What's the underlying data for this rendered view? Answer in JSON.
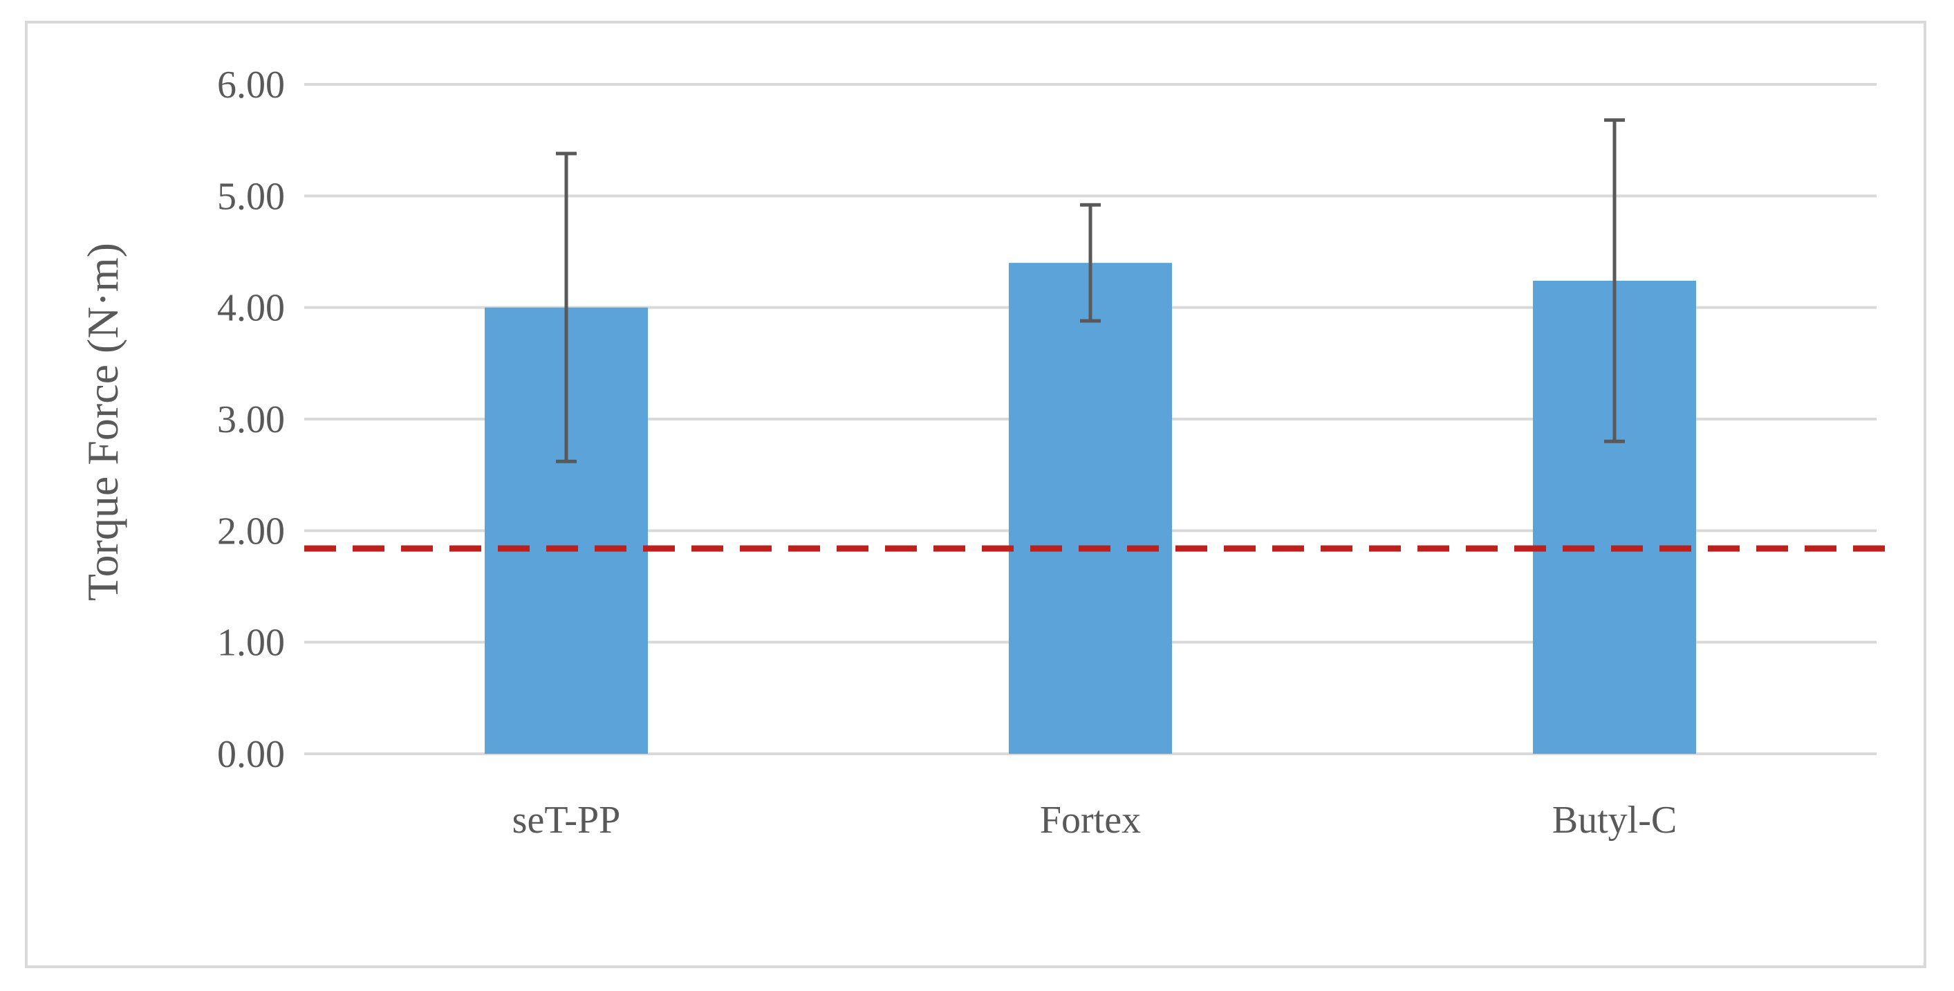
{
  "chart_data": {
    "type": "bar",
    "title": "",
    "xlabel": "",
    "ylabel": "Torque Force (N·m)",
    "categories": [
      "seT-PP",
      "Fortex",
      "Butyl-C"
    ],
    "values": [
      4.0,
      4.4,
      4.24
    ],
    "error_low": [
      2.62,
      3.88,
      2.8
    ],
    "error_high": [
      5.38,
      4.92,
      5.68
    ],
    "ylim": [
      0,
      6
    ],
    "yticks": [
      0,
      1,
      2,
      3,
      4,
      5,
      6
    ],
    "ytick_labels": [
      "0.00",
      "1.00",
      "2.00",
      "3.00",
      "4.00",
      "5.00",
      "6.00"
    ],
    "reference_line": {
      "value": 1.84,
      "style": "dashed"
    },
    "grid": true,
    "legend": "none",
    "colors": {
      "bar": "#5ba3d9",
      "error_bar": "#595959",
      "reference_line": "#c0201c",
      "grid": "#d9d9d9",
      "text": "#595959"
    }
  }
}
